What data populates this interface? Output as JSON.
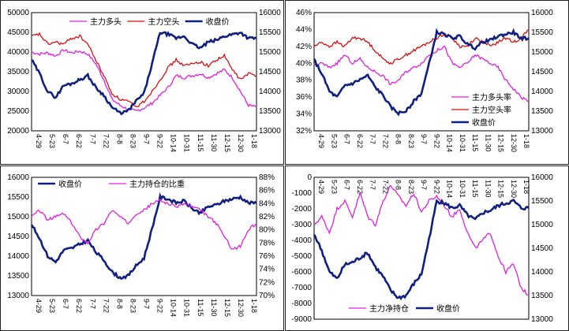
{
  "chart_data": [
    {
      "type": "line",
      "panel": "top-left",
      "title": "",
      "x_tick_labels": [
        "4-29",
        "5-23",
        "6-7",
        "6-22",
        "7-7",
        "7-22",
        "8-8",
        "8-23",
        "9-7",
        "9-22",
        "10-14",
        "10-31",
        "11-15",
        "11-30",
        "12-15",
        "12-30",
        "1-18"
      ],
      "left_axis": {
        "ylim": [
          20000,
          50000
        ],
        "ticks": [
          "20000",
          "25000",
          "30000",
          "35000",
          "40000",
          "45000",
          "50000"
        ]
      },
      "right_axis": {
        "ylim": [
          13000,
          16000
        ],
        "ticks": [
          "13000",
          "13500",
          "14000",
          "14500",
          "15000",
          "15500",
          "16000"
        ]
      },
      "legend": [
        "主力多头",
        "主力空头",
        "收盘价"
      ],
      "legend_position": "top",
      "series": [
        {
          "name": "主力多头",
          "axis": "left",
          "color": "#e020e0",
          "values": [
            40000,
            39500,
            39800,
            39000,
            40500,
            39800,
            40200,
            39500,
            37000,
            33000,
            28000,
            26500,
            25500,
            25000,
            25800,
            27000,
            29000,
            31000,
            34000,
            33500,
            34000,
            34500,
            33500,
            34500,
            35500,
            33500,
            30000,
            26500,
            26000
          ]
        },
        {
          "name": "主力空头",
          "axis": "left",
          "color": "#d81010",
          "values": [
            44000,
            44500,
            42000,
            42500,
            42000,
            43500,
            44000,
            42000,
            38000,
            34000,
            29500,
            28000,
            27500,
            26000,
            27500,
            30000,
            33000,
            36000,
            38000,
            36500,
            37000,
            37500,
            36500,
            38000,
            39000,
            35500,
            33000,
            34500,
            34000
          ]
        },
        {
          "name": "收盘价",
          "axis": "right",
          "color": "#102080",
          "values": [
            14800,
            14450,
            14000,
            13850,
            14150,
            14200,
            14300,
            14400,
            14100,
            13900,
            13600,
            13450,
            13500,
            13750,
            13950,
            14700,
            15500,
            15450,
            15350,
            15400,
            15200,
            15100,
            15250,
            15300,
            15400,
            15450,
            15500,
            15350,
            15350
          ]
        }
      ]
    },
    {
      "type": "line",
      "panel": "top-right",
      "title": "",
      "x_tick_labels": [
        "4-29",
        "5-23",
        "6-7",
        "6-22",
        "7-7",
        "7-22",
        "8-8",
        "8-23",
        "9-7",
        "9-22",
        "10-14",
        "10-31",
        "11-15",
        "11-30",
        "12-15",
        "12-30",
        "1-18"
      ],
      "left_axis": {
        "ylim": [
          0.32,
          0.46
        ],
        "ticks": [
          "32%",
          "34%",
          "36%",
          "38%",
          "40%",
          "42%",
          "44%",
          "46%"
        ]
      },
      "right_axis": {
        "ylim": [
          13000,
          16000
        ],
        "ticks": [
          "13000",
          "13500",
          "14000",
          "14500",
          "15000",
          "15500",
          "16000"
        ]
      },
      "legend": [
        "主力多头率",
        "主力空头率",
        "收盘价"
      ],
      "legend_position": "bottom-right",
      "series": [
        {
          "name": "主力多头率",
          "axis": "left",
          "color": "#e020e0",
          "values": [
            0.398,
            0.4,
            0.395,
            0.4,
            0.41,
            0.4,
            0.405,
            0.395,
            0.39,
            0.385,
            0.375,
            0.38,
            0.39,
            0.395,
            0.4,
            0.41,
            0.415,
            0.42,
            0.4,
            0.395,
            0.4,
            0.41,
            0.405,
            0.4,
            0.395,
            0.38,
            0.37,
            0.36,
            0.355
          ]
        },
        {
          "name": "主力空头率",
          "axis": "left",
          "color": "#d81010",
          "values": [
            0.42,
            0.425,
            0.42,
            0.425,
            0.42,
            0.43,
            0.43,
            0.425,
            0.415,
            0.405,
            0.4,
            0.405,
            0.41,
            0.415,
            0.42,
            0.425,
            0.43,
            0.435,
            0.43,
            0.42,
            0.42,
            0.43,
            0.425,
            0.42,
            0.425,
            0.43,
            0.425,
            0.43,
            0.44
          ]
        },
        {
          "name": "收盘价",
          "axis": "right",
          "color": "#102080",
          "values": [
            14800,
            14450,
            14000,
            13850,
            14150,
            14200,
            14300,
            14400,
            14100,
            13900,
            13600,
            13450,
            13500,
            13750,
            13950,
            14700,
            15500,
            15450,
            15350,
            15400,
            15200,
            15100,
            15250,
            15300,
            15400,
            15450,
            15500,
            15350,
            15350
          ]
        }
      ]
    },
    {
      "type": "line",
      "panel": "bottom-left",
      "title": "",
      "x_tick_labels": [
        "4-29",
        "5-23",
        "6-7",
        "6-22",
        "7-7",
        "7-22",
        "8-8",
        "8-23",
        "9-7",
        "9-22",
        "10-14",
        "10-31",
        "11-15",
        "11-30",
        "12-15",
        "12-30",
        "1-18"
      ],
      "left_axis": {
        "ylim": [
          13000,
          16000
        ],
        "ticks": [
          "13000",
          "13500",
          "14000",
          "14500",
          "15000",
          "15500",
          "16000"
        ]
      },
      "right_axis": {
        "ylim": [
          0.7,
          0.88
        ],
        "ticks": [
          "70%",
          "72%",
          "74%",
          "76%",
          "78%",
          "80%",
          "82%",
          "84%",
          "86%",
          "88%"
        ]
      },
      "legend": [
        "收盘价",
        "主力持仓的比重"
      ],
      "legend_position": "top",
      "series": [
        {
          "name": "收盘价",
          "axis": "left",
          "color": "#102080",
          "values": [
            14800,
            14450,
            14000,
            13850,
            14150,
            14200,
            14300,
            14400,
            14100,
            13900,
            13600,
            13450,
            13500,
            13750,
            13950,
            14700,
            15500,
            15450,
            15350,
            15400,
            15200,
            15100,
            15250,
            15300,
            15400,
            15450,
            15500,
            15350,
            15350
          ]
        },
        {
          "name": "主力持仓的比重",
          "axis": "right",
          "color": "#e020e0",
          "values": [
            0.82,
            0.83,
            0.815,
            0.82,
            0.825,
            0.81,
            0.79,
            0.78,
            0.8,
            0.81,
            0.83,
            0.82,
            0.81,
            0.825,
            0.83,
            0.84,
            0.845,
            0.84,
            0.835,
            0.84,
            0.835,
            0.83,
            0.82,
            0.81,
            0.79,
            0.77,
            0.775,
            0.8,
            0.81
          ]
        }
      ]
    },
    {
      "type": "line",
      "panel": "bottom-right",
      "title": "",
      "x_tick_labels": [
        "4-29",
        "5-23",
        "6-7",
        "6-22",
        "7-7",
        "7-22",
        "8-8",
        "8-23",
        "9-7",
        "9-22",
        "10-14",
        "10-31",
        "11-15",
        "11-30",
        "12-15",
        "12-30",
        "1-18"
      ],
      "left_axis": {
        "ylim": [
          -9000,
          0
        ],
        "ticks": [
          "-9000",
          "-8000",
          "-7000",
          "-6000",
          "-5000",
          "-4000",
          "-3000",
          "-2000",
          "-1000",
          "0"
        ]
      },
      "right_axis": {
        "ylim": [
          13000,
          16000
        ],
        "ticks": [
          "13000",
          "13500",
          "14000",
          "14500",
          "15000",
          "15500",
          "16000"
        ]
      },
      "legend": [
        "主力净持仓",
        "收盘价"
      ],
      "legend_position": "bottom",
      "series": [
        {
          "name": "主力净持仓",
          "axis": "left",
          "color": "#e020e0",
          "values": [
            -3000,
            -2500,
            -3500,
            -2000,
            -1500,
            -2500,
            -1000,
            -2500,
            -3000,
            -1500,
            -500,
            -1200,
            -1800,
            -1000,
            -2200,
            -1500,
            -1200,
            -1800,
            -2500,
            -2000,
            -3500,
            -4500,
            -4000,
            -3500,
            -5000,
            -6000,
            -5500,
            -7000,
            -7500
          ]
        },
        {
          "name": "收盘价",
          "axis": "right",
          "color": "#102080",
          "values": [
            14800,
            14450,
            14000,
            13850,
            14150,
            14200,
            14300,
            14400,
            14100,
            13900,
            13600,
            13450,
            13500,
            13750,
            13950,
            14700,
            15500,
            15450,
            15350,
            15400,
            15200,
            15100,
            15250,
            15300,
            15400,
            15450,
            15500,
            15350,
            15350
          ]
        }
      ]
    }
  ]
}
